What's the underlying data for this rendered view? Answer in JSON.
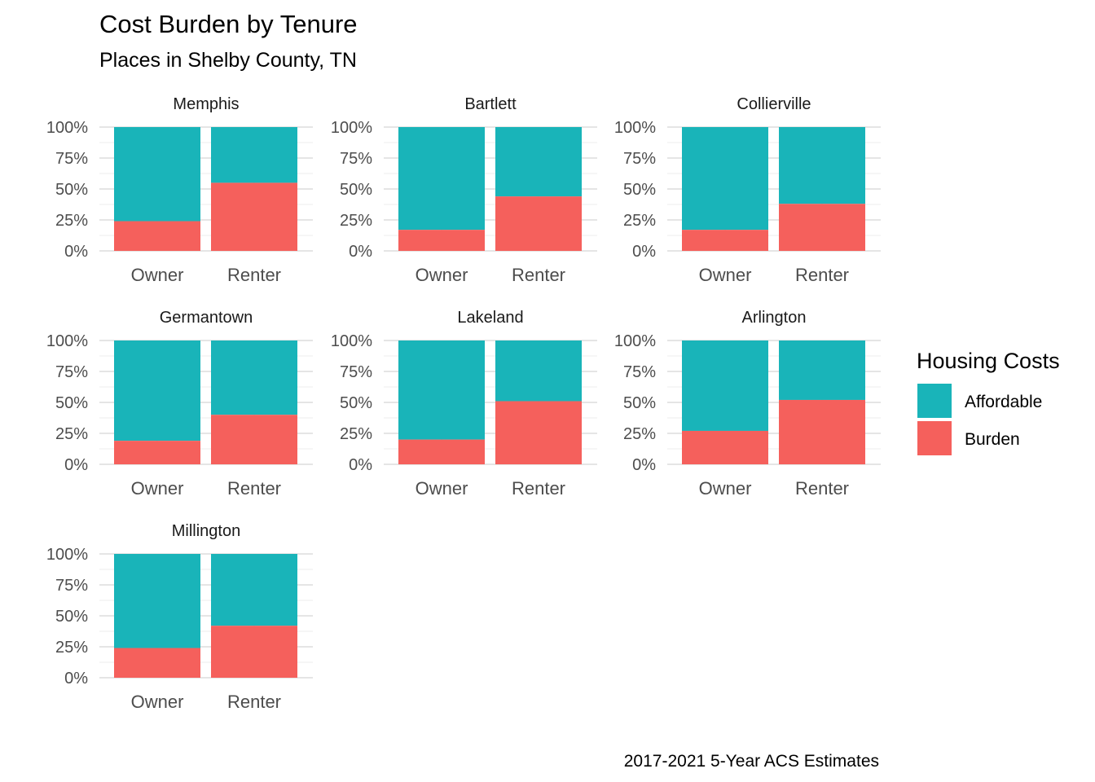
{
  "chart_data": {
    "type": "bar",
    "stacked": "percent",
    "title": "Cost Burden by Tenure",
    "subtitle": "Places in Shelby County, TN",
    "caption": "2017-2021 5-Year ACS Estimates",
    "categories": [
      "Owner",
      "Renter"
    ],
    "y_ticks": [
      "0%",
      "25%",
      "50%",
      "75%",
      "100%"
    ],
    "ylim": [
      0,
      1
    ],
    "grid": true,
    "legend": {
      "title": "Housing Costs",
      "placement": "right",
      "items": [
        {
          "key": "affordable",
          "label": "Affordable",
          "color": "#19B4B9"
        },
        {
          "key": "burden",
          "label": "Burden",
          "color": "#F5605C"
        }
      ]
    },
    "facets": [
      {
        "name": "Memphis",
        "burden": [
          0.24,
          0.55
        ],
        "affordable": [
          0.76,
          0.45
        ]
      },
      {
        "name": "Bartlett",
        "burden": [
          0.17,
          0.44
        ],
        "affordable": [
          0.83,
          0.56
        ]
      },
      {
        "name": "Collierville",
        "burden": [
          0.17,
          0.38
        ],
        "affordable": [
          0.83,
          0.62
        ]
      },
      {
        "name": "Germantown",
        "burden": [
          0.19,
          0.4
        ],
        "affordable": [
          0.81,
          0.6
        ]
      },
      {
        "name": "Lakeland",
        "burden": [
          0.2,
          0.51
        ],
        "affordable": [
          0.8,
          0.49
        ]
      },
      {
        "name": "Arlington",
        "burden": [
          0.27,
          0.52
        ],
        "affordable": [
          0.73,
          0.48
        ]
      },
      {
        "name": "Millington",
        "burden": [
          0.24,
          0.42
        ],
        "affordable": [
          0.76,
          0.58
        ]
      }
    ]
  }
}
